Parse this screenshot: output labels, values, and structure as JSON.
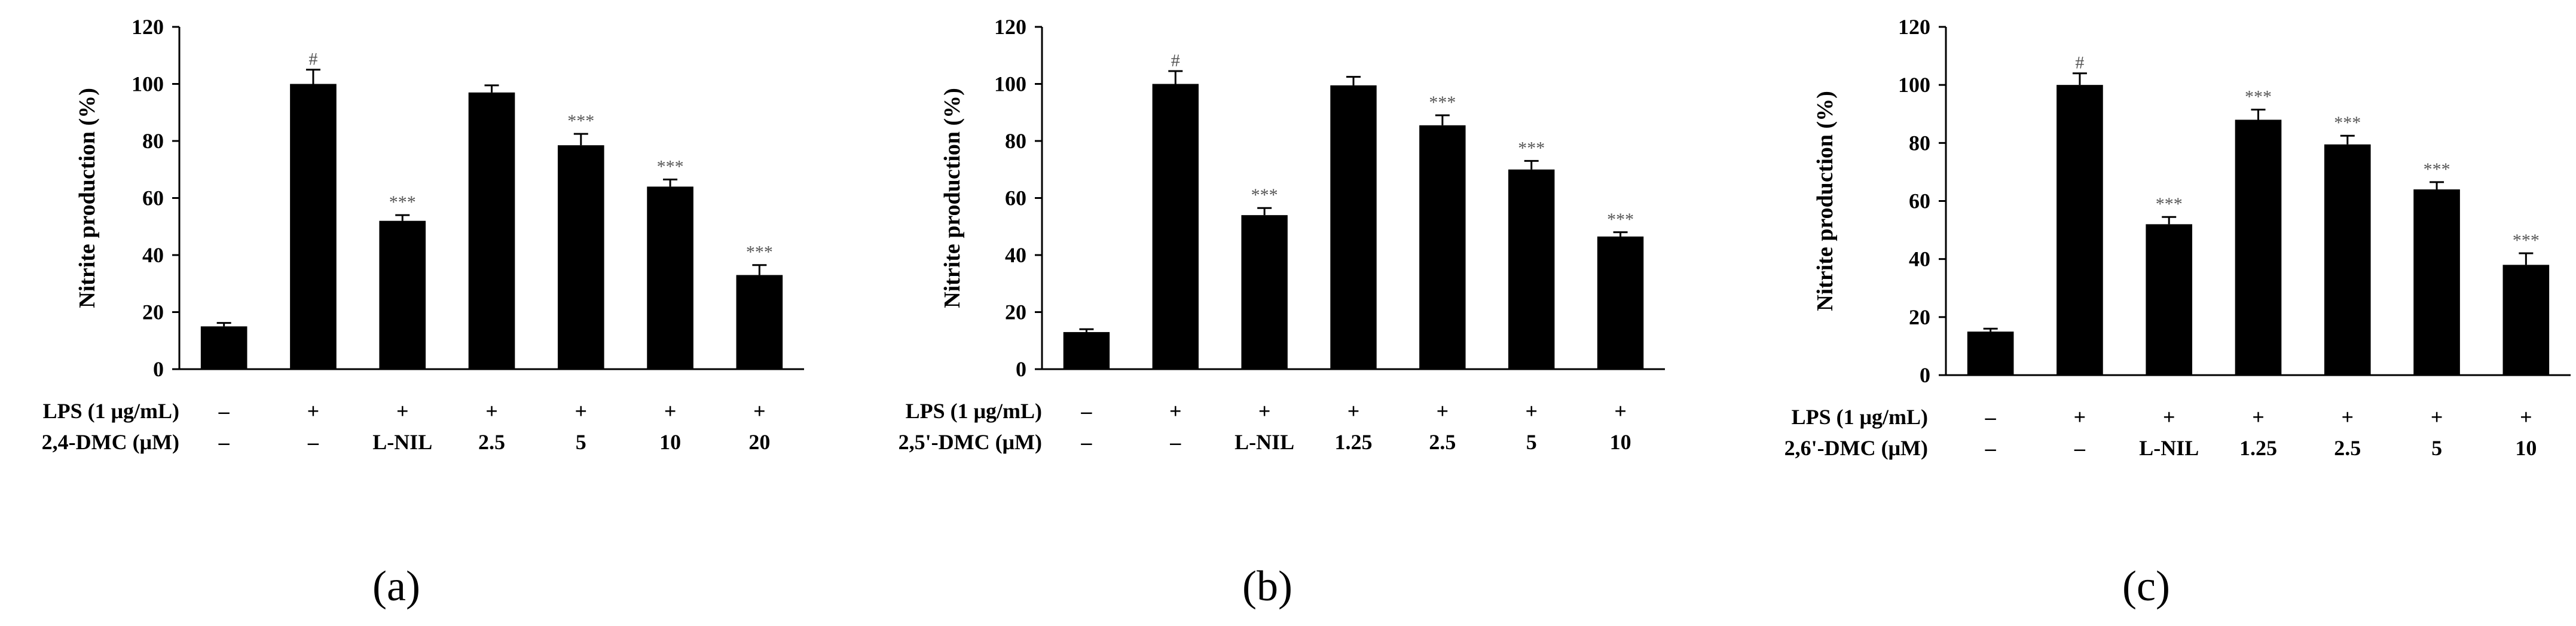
{
  "chart_data": [
    {
      "type": "bar",
      "panel_label": "(a)",
      "ylabel": "Nitrite production (%)",
      "ylim": [
        0,
        120
      ],
      "yticks": [
        "0",
        "20",
        "40",
        "60",
        "80",
        "100",
        "120"
      ],
      "rows": [
        {
          "label": "LPS (1 μg/mL)",
          "values": [
            "–",
            "+",
            "+",
            "+",
            "+",
            "+",
            "+"
          ]
        },
        {
          "label": "2,4-DMC (μM)",
          "values": [
            "–",
            "–",
            "L-NIL",
            "2.5",
            "5",
            "10",
            "20"
          ]
        }
      ],
      "values": [
        15,
        100,
        52,
        97,
        78.5,
        64,
        33
      ],
      "errors": [
        1.2,
        5,
        2,
        2.5,
        4,
        2.5,
        3.5
      ],
      "annotations": [
        "",
        "#",
        "***",
        "",
        "***",
        "***",
        "***"
      ]
    },
    {
      "type": "bar",
      "panel_label": "(b)",
      "ylabel": "Nitrite production (%)",
      "ylim": [
        0,
        120
      ],
      "yticks": [
        "0",
        "20",
        "40",
        "60",
        "80",
        "100",
        "120"
      ],
      "rows": [
        {
          "label": "LPS (1 μg/mL)",
          "values": [
            "–",
            "+",
            "+",
            "+",
            "+",
            "+",
            "+"
          ]
        },
        {
          "label": "2,5'-DMC (μM)",
          "values": [
            "–",
            "–",
            "L-NIL",
            "1.25",
            "2.5",
            "5",
            "10"
          ]
        }
      ],
      "values": [
        13,
        100,
        54,
        99.5,
        85.5,
        70,
        46.5
      ],
      "errors": [
        1,
        4.5,
        2.5,
        3,
        3.5,
        3,
        1.5
      ],
      "annotations": [
        "",
        "#",
        "***",
        "",
        "***",
        "***",
        "***"
      ]
    },
    {
      "type": "bar",
      "panel_label": "(c)",
      "ylabel": "Nitrite production (%)",
      "ylim": [
        0,
        120
      ],
      "yticks": [
        "0",
        "20",
        "40",
        "60",
        "80",
        "100",
        "120"
      ],
      "rows": [
        {
          "label": "LPS (1 μg/mL)",
          "values": [
            "–",
            "+",
            "+",
            "+",
            "+",
            "+",
            "+"
          ]
        },
        {
          "label": "2,6'-DMC (μM)",
          "values": [
            "–",
            "–",
            "L-NIL",
            "1.25",
            "2.5",
            "5",
            "10"
          ]
        }
      ],
      "values": [
        15,
        100,
        52,
        88,
        79.5,
        64,
        38
      ],
      "errors": [
        1,
        4,
        2.5,
        3.5,
        3,
        2.5,
        4
      ],
      "annotations": [
        "",
        "#",
        "***",
        "***",
        "***",
        "***",
        "***"
      ]
    }
  ]
}
